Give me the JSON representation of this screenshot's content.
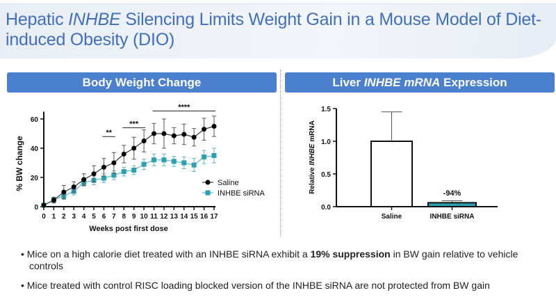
{
  "title": {
    "part1": "Hepatic ",
    "italic": "INHBE",
    "part2": " Silencing Limits Weight Gain in a Mouse Model of Diet-induced Obesity (DIO)"
  },
  "headers": {
    "left": "Body Weight Change",
    "right_1": "Liver ",
    "right_italic": "INHBE mRNA",
    "right_2": " Expression"
  },
  "colors": {
    "accent": "#4a80ce",
    "saline": "#000000",
    "sirna": "#2aa0b0"
  },
  "chart_data": [
    {
      "type": "line",
      "xlabel": "Weeks post first dose",
      "ylabel": "% BW change",
      "ylim": [
        0,
        65
      ],
      "xlim": [
        0,
        17
      ],
      "yticks": [
        0,
        20,
        40,
        60
      ],
      "x": [
        0,
        1,
        2,
        3,
        4,
        5,
        6,
        7,
        8,
        9,
        10,
        11,
        12,
        13,
        14,
        15,
        16,
        17
      ],
      "series": [
        {
          "name": "Saline",
          "marker": "circle",
          "values": [
            1,
            4.5,
            10,
            13.5,
            18.5,
            22.5,
            27,
            30,
            36,
            40,
            45,
            50,
            50,
            48.5,
            49.5,
            47.5,
            53,
            55
          ],
          "errors": [
            0.5,
            2,
            4.5,
            3.5,
            4,
            5.5,
            6,
            7,
            6,
            7.5,
            7.5,
            7,
            10,
            5.5,
            7,
            6,
            7.5,
            7
          ]
        },
        {
          "name": "INHBE siRNA",
          "marker": "square",
          "values": [
            1,
            4.5,
            7.5,
            10.5,
            16.5,
            18,
            19.5,
            21.5,
            24,
            25,
            29,
            32,
            32,
            31,
            30,
            28.5,
            34,
            35
          ],
          "errors": [
            0.5,
            1.5,
            2.5,
            2.5,
            2.5,
            3,
            3,
            3,
            3,
            3,
            3.5,
            4,
            4,
            3.5,
            4,
            4.5,
            4.5,
            5
          ]
        }
      ],
      "significance": [
        {
          "from": 6,
          "to": 7,
          "label": "**"
        },
        {
          "from": 8,
          "to": 10,
          "label": "***"
        },
        {
          "from": 11,
          "to": 17,
          "label": "****"
        }
      ],
      "legend": "right"
    },
    {
      "type": "bar",
      "ylabel_1": "Relative ",
      "ylabel_italic": "INHBE",
      "ylabel_2": " mRNA",
      "ylim": [
        0,
        1.5
      ],
      "yticks": [
        "0.0",
        "0.5",
        "1.0",
        "1.5"
      ],
      "categories": [
        "Saline",
        "INHBE siRNA"
      ],
      "values": [
        1.0,
        0.06
      ],
      "errors": [
        0.45,
        0.03
      ],
      "annotations": [
        "",
        "-94%"
      ]
    }
  ],
  "bullets": [
    {
      "pre": "Mice on a high calorie diet treated with an INHBE siRNA exhibit a ",
      "bold": "19% suppression",
      "post": " in BW gain relative to vehicle controls"
    },
    {
      "pre": "Mice treated with control RISC loading blocked version of the INHBE siRNA are not protected from BW gain",
      "bold": "",
      "post": ""
    }
  ]
}
